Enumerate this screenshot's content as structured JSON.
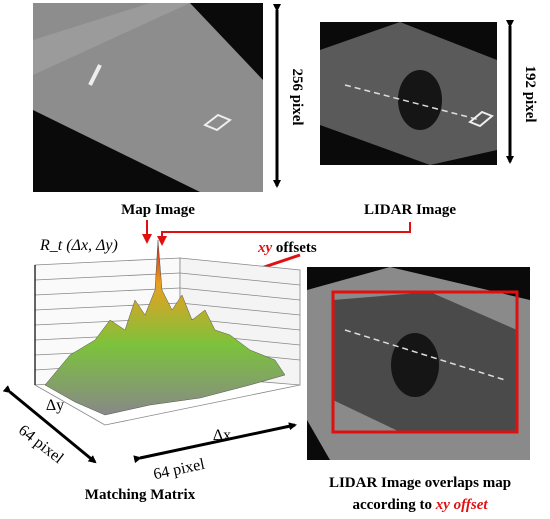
{
  "map_image": {
    "label": "Map Image",
    "size_label": "256 pixel"
  },
  "lidar_image": {
    "label": "LIDAR Image",
    "size_label": "192 pixel"
  },
  "matrix": {
    "function_label": "R_t (Δx, Δy)",
    "dy_label": "Δy",
    "dx_label": "Δx",
    "side_label_left": "64 pixel",
    "side_label_bottom": "64 pixel",
    "caption": "Matching Matrix"
  },
  "offsets_label": {
    "emph": "xy",
    "rest": " offsets"
  },
  "overlap_caption": {
    "line1": "LIDAR Image overlaps map",
    "line2_text": "according to ",
    "line2_emph": "xy offset"
  }
}
